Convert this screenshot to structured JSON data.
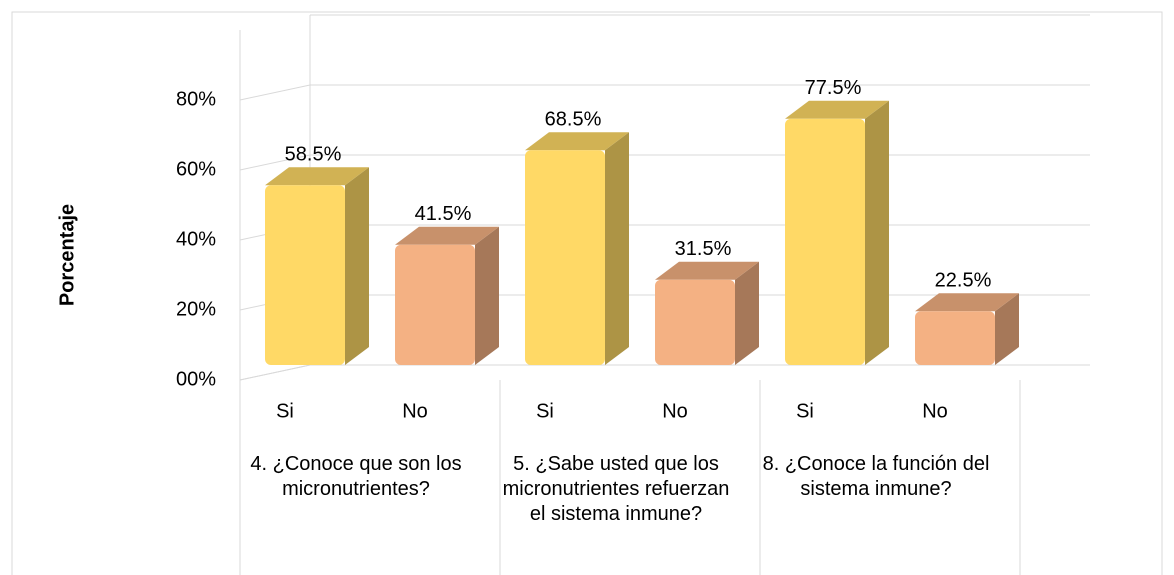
{
  "chart_data": {
    "type": "bar3d",
    "y_label": "Porcentaje",
    "categories": [
      "Si",
      "No",
      "Si",
      "No",
      "Si",
      "No"
    ],
    "groups": [
      "4. ¿Conoce que son los micronutrientes?",
      "5. ¿Sabe usted que los micronutrientes refuerzan el sistema inmune?",
      "8. ¿Conoce la función del sistema inmune?"
    ],
    "values": [
      58.5,
      41.5,
      68.5,
      31.5,
      77.5,
      22.5
    ],
    "value_labels": [
      "58.5%",
      "41.5%",
      "68.5%",
      "31.5%",
      "77.5%",
      "22.5%"
    ],
    "colors": [
      "#ffd966",
      "#f4b183",
      "#ffd966",
      "#f4b183",
      "#ffd966",
      "#f4b183"
    ],
    "ylim": [
      0,
      100
    ],
    "yticks": [
      {
        "value": 0,
        "label": "00%"
      },
      {
        "value": 20,
        "label": "20%"
      },
      {
        "value": 40,
        "label": "40%"
      },
      {
        "value": 60,
        "label": "60%"
      },
      {
        "value": 80,
        "label": "80%"
      }
    ],
    "grid": true
  }
}
